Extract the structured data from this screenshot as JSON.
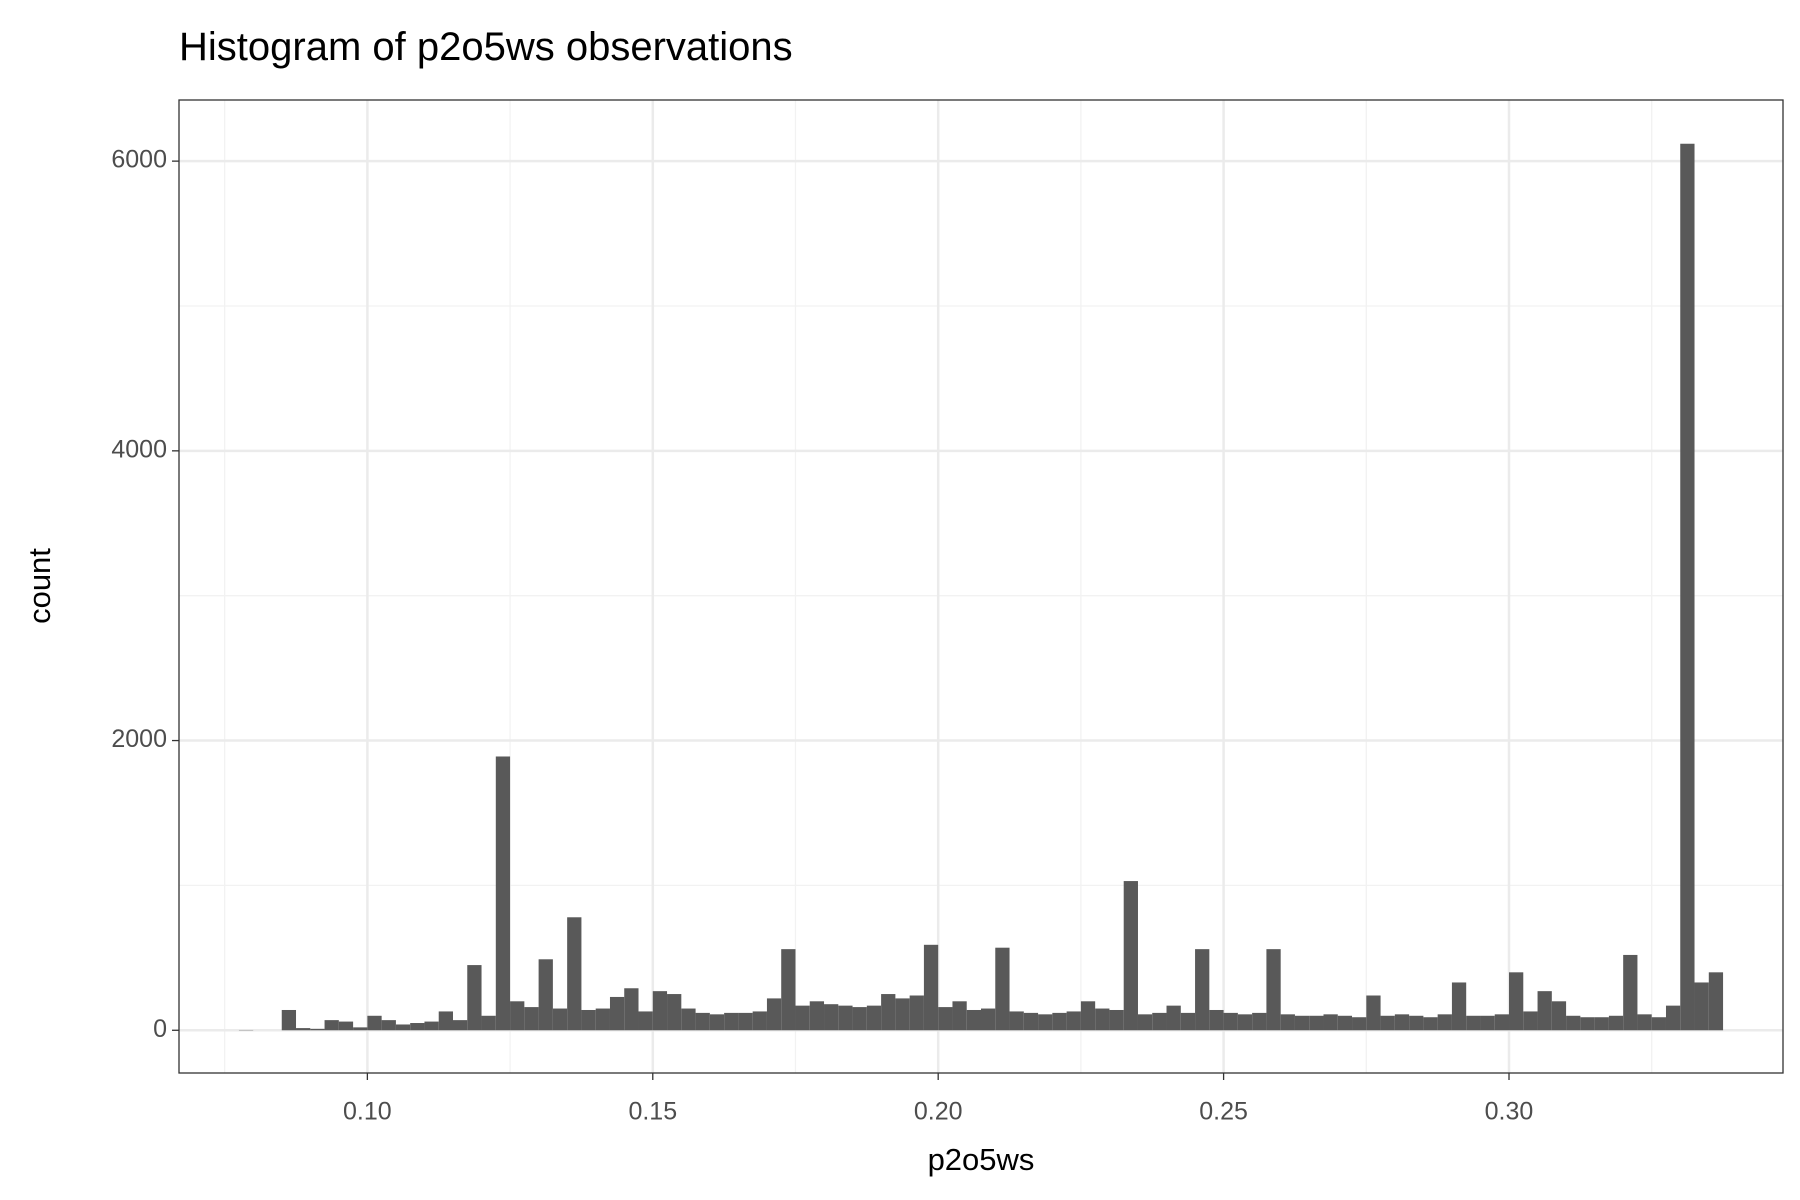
{
  "chart_data": {
    "type": "histogram",
    "title": "Histogram of p2o5ws observations",
    "x_label": "p2o5ws",
    "y_label": "count",
    "color": "#595959",
    "grid": true,
    "minor_grid": true,
    "xlim": [
      0.067,
      0.348
    ],
    "ylim": [
      -295,
      6422
    ],
    "xticks": [
      {
        "value": 0.1,
        "label": "0.10"
      },
      {
        "value": 0.15,
        "label": "0.15"
      },
      {
        "value": 0.2,
        "label": "0.20"
      },
      {
        "value": 0.25,
        "label": "0.25"
      },
      {
        "value": 0.3,
        "label": "0.30"
      }
    ],
    "yticks": [
      0,
      2000,
      4000,
      6000
    ],
    "bins": [
      0.0775,
      0.08,
      0.0825,
      0.085,
      0.0875,
      0.09,
      0.0925,
      0.095,
      0.0975,
      0.1,
      0.1025,
      0.105,
      0.1075,
      0.11,
      0.1125,
      0.115,
      0.1175,
      0.12,
      0.1225,
      0.125,
      0.1275,
      0.13,
      0.1325,
      0.135,
      0.1375,
      0.14,
      0.1425,
      0.145,
      0.1475,
      0.15,
      0.1525,
      0.155,
      0.1575,
      0.16,
      0.1625,
      0.165,
      0.1675,
      0.17,
      0.1725,
      0.175,
      0.1775,
      0.18,
      0.1825,
      0.185,
      0.1875,
      0.19,
      0.1925,
      0.195,
      0.1975,
      0.2,
      0.2025,
      0.205,
      0.2075,
      0.21,
      0.2125,
      0.215,
      0.2175,
      0.22,
      0.2225,
      0.225,
      0.2275,
      0.23,
      0.2325,
      0.235,
      0.2375,
      0.24,
      0.2425,
      0.245,
      0.2475,
      0.25,
      0.2525,
      0.255,
      0.2575,
      0.26,
      0.2625,
      0.265,
      0.2675,
      0.27,
      0.2725,
      0.275,
      0.2775,
      0.28,
      0.2825,
      0.285,
      0.2875,
      0.29,
      0.2925,
      0.295,
      0.2975,
      0.3,
      0.3025,
      0.305,
      0.3075,
      0.31,
      0.3125,
      0.315,
      0.3175,
      0.32,
      0.3225,
      0.325,
      0.3275,
      0.33,
      0.3325,
      0.335,
      0.3375
    ],
    "values": [
      2,
      0,
      0,
      140,
      15,
      10,
      70,
      60,
      20,
      100,
      70,
      40,
      50,
      60,
      130,
      70,
      450,
      100,
      1890,
      200,
      160,
      490,
      150,
      780,
      140,
      150,
      230,
      290,
      130,
      270,
      250,
      150,
      120,
      110,
      120,
      120,
      130,
      220,
      560,
      170,
      200,
      180,
      170,
      160,
      170,
      250,
      220,
      240,
      590,
      160,
      200,
      140,
      150,
      570,
      130,
      120,
      110,
      120,
      130,
      200,
      150,
      140,
      1030,
      110,
      120,
      170,
      120,
      560,
      140,
      120,
      110,
      120,
      560,
      110,
      100,
      100,
      110,
      100,
      90,
      240,
      100,
      110,
      100,
      90,
      110,
      330,
      100,
      100,
      110,
      400,
      130,
      270,
      200,
      100,
      90,
      90,
      100,
      520,
      110,
      90,
      170,
      6120,
      330,
      400
    ]
  }
}
